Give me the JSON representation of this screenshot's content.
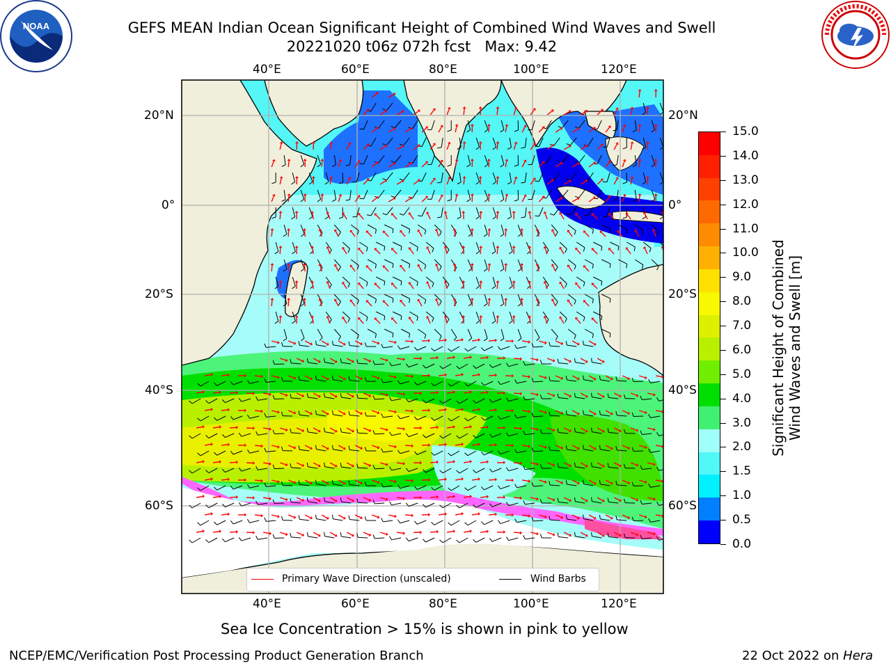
{
  "title": {
    "line1": "GEFS MEAN Indian Ocean Significant Height of Combined Wind Waves and Swell",
    "line2": "20221020 t06z 072h fcst   Max: 9.42"
  },
  "logos": {
    "left": "noara-logo",
    "right": "nws-logo"
  },
  "map": {
    "lon_labels": [
      "40°E",
      "60°E",
      "80°E",
      "100°E",
      "120°E"
    ],
    "lat_labels": [
      "20°N",
      "0°",
      "20°S",
      "40°S",
      "60°S"
    ],
    "land_color": "#efefdc",
    "grid_color": "#b0b0b0"
  },
  "legend": {
    "wave_label": "Primary Wave Direction (unscaled)",
    "wind_label": "Wind Barbs",
    "wave_color": "#ff0000",
    "wind_color": "#000000"
  },
  "colorbar": {
    "title_line1": "Significant Height of Combined",
    "title_line2": "Wind Waves and Swell [m]",
    "ticks": [
      "15.0",
      "14.0",
      "13.0",
      "12.0",
      "11.0",
      "10.0",
      "9.0",
      "8.0",
      "7.0",
      "6.0",
      "5.0",
      "4.0",
      "3.0",
      "2.0",
      "1.5",
      "1.0",
      "0.5",
      "0.0"
    ],
    "colors": [
      "#ff0000",
      "#ff2000",
      "#ff4000",
      "#ff6a00",
      "#ff8c00",
      "#ffb000",
      "#ffe000",
      "#f8f800",
      "#dcf000",
      "#b8f000",
      "#70f000",
      "#00e000",
      "#40f070",
      "#a0fff8",
      "#50f8f8",
      "#00f0ff",
      "#0080ff",
      "#0000ff"
    ]
  },
  "subtitle": "Sea Ice Concentration > 15% is shown in pink to yellow",
  "footer": {
    "left": "NCEP/EMC/Verification Post Processing Product Generation Branch",
    "right_date": "22 Oct 2022 on ",
    "right_host": "Hera"
  }
}
